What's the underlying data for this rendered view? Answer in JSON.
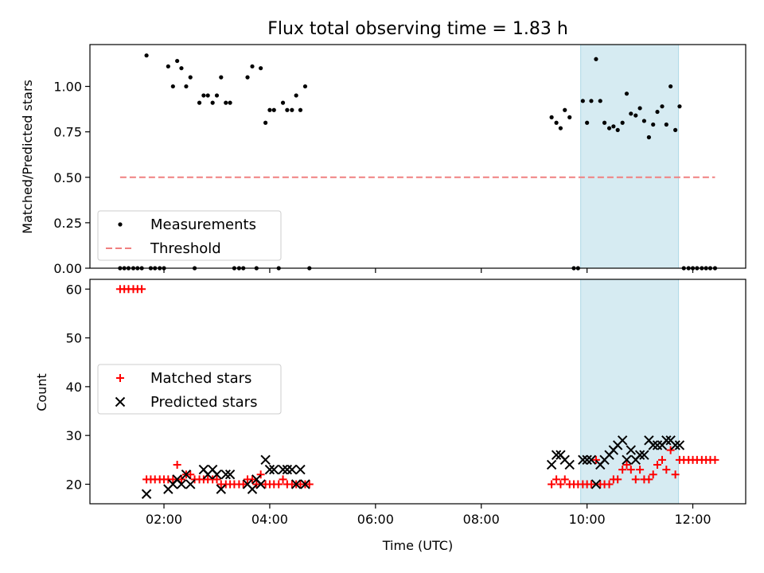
{
  "chart_data": [
    {
      "type": "scatter",
      "title": "Flux total observing time = 1.83 h",
      "xlabel": "",
      "ylabel": "Matched/Predicted stars",
      "xlim": [
        0.6,
        13.0
      ],
      "ylim": [
        0,
        1.23
      ],
      "yticks": [
        0,
        0.25,
        0.5,
        0.75,
        1.0
      ],
      "ytick_labels": [
        "0.00",
        "0.25",
        "0.50",
        "0.75",
        "1.00"
      ],
      "xticks": [
        2,
        4,
        6,
        8,
        10,
        12
      ],
      "xtick_labels": [
        "",
        "",
        "",
        "",
        "",
        ""
      ],
      "shaded_region": {
        "x0": 9.88,
        "x1": 11.73,
        "color": "#add8e6"
      },
      "legend": {
        "placement": "lower-left",
        "entries": [
          "Measurements",
          "Threshold"
        ]
      },
      "series": [
        {
          "name": "Measurements",
          "marker": "dot",
          "color": "#000000",
          "points": [
            [
              1.17,
              0
            ],
            [
              1.25,
              0
            ],
            [
              1.33,
              0
            ],
            [
              1.42,
              0
            ],
            [
              1.5,
              0
            ],
            [
              1.58,
              0
            ],
            [
              1.67,
              1.17
            ],
            [
              1.75,
              0
            ],
            [
              1.83,
              0
            ],
            [
              1.92,
              0
            ],
            [
              2.0,
              0
            ],
            [
              2.08,
              1.11
            ],
            [
              2.17,
              1.0
            ],
            [
              2.25,
              1.14
            ],
            [
              2.33,
              1.1
            ],
            [
              2.42,
              1.0
            ],
            [
              2.5,
              1.05
            ],
            [
              2.58,
              0
            ],
            [
              2.67,
              0.91
            ],
            [
              2.75,
              0.95
            ],
            [
              2.83,
              0.95
            ],
            [
              2.92,
              0.91
            ],
            [
              3.0,
              0.95
            ],
            [
              3.08,
              1.05
            ],
            [
              3.17,
              0.91
            ],
            [
              3.25,
              0.91
            ],
            [
              3.33,
              0
            ],
            [
              3.42,
              0
            ],
            [
              3.5,
              0
            ],
            [
              3.58,
              1.05
            ],
            [
              3.67,
              1.11
            ],
            [
              3.75,
              0
            ],
            [
              3.83,
              1.1
            ],
            [
              3.92,
              0.8
            ],
            [
              4.0,
              0.87
            ],
            [
              4.08,
              0.87
            ],
            [
              4.17,
              0
            ],
            [
              4.25,
              0.91
            ],
            [
              4.33,
              0.87
            ],
            [
              4.42,
              0.87
            ],
            [
              4.5,
              0.95
            ],
            [
              4.58,
              0.87
            ],
            [
              4.67,
              1.0
            ],
            [
              4.75,
              0
            ],
            [
              9.33,
              0.83
            ],
            [
              9.42,
              0.8
            ],
            [
              9.5,
              0.77
            ],
            [
              9.58,
              0.87
            ],
            [
              9.67,
              0.83
            ],
            [
              9.75,
              0
            ],
            [
              9.83,
              0
            ],
            [
              9.92,
              0.92
            ],
            [
              10.0,
              0.8
            ],
            [
              10.08,
              0.92
            ],
            [
              10.17,
              1.15
            ],
            [
              10.25,
              0.92
            ],
            [
              10.33,
              0.8
            ],
            [
              10.42,
              0.77
            ],
            [
              10.5,
              0.78
            ],
            [
              10.58,
              0.76
            ],
            [
              10.67,
              0.8
            ],
            [
              10.75,
              0.96
            ],
            [
              10.83,
              0.85
            ],
            [
              10.92,
              0.84
            ],
            [
              11.0,
              0.88
            ],
            [
              11.08,
              0.81
            ],
            [
              11.17,
              0.72
            ],
            [
              11.25,
              0.79
            ],
            [
              11.33,
              0.86
            ],
            [
              11.42,
              0.89
            ],
            [
              11.5,
              0.79
            ],
            [
              11.58,
              1.0
            ],
            [
              11.67,
              0.76
            ],
            [
              11.75,
              0.89
            ],
            [
              11.83,
              0
            ],
            [
              11.92,
              0
            ],
            [
              12.0,
              0
            ],
            [
              12.08,
              0
            ],
            [
              12.17,
              0
            ],
            [
              12.25,
              0
            ],
            [
              12.33,
              0
            ],
            [
              12.42,
              0
            ]
          ]
        },
        {
          "name": "Threshold",
          "line": "dashed",
          "color": "#f08080",
          "points": [
            [
              1.17,
              0.5
            ],
            [
              12.42,
              0.5
            ]
          ]
        }
      ]
    },
    {
      "type": "scatter",
      "title": "",
      "xlabel": "Time (UTC)",
      "ylabel": "Count",
      "xlim": [
        0.6,
        13.0
      ],
      "ylim": [
        16,
        62
      ],
      "yticks": [
        20,
        30,
        40,
        50,
        60
      ],
      "ytick_labels": [
        "20",
        "30",
        "40",
        "50",
        "60"
      ],
      "xticks": [
        2,
        4,
        6,
        8,
        10,
        12
      ],
      "xtick_labels": [
        "02:00",
        "04:00",
        "06:00",
        "08:00",
        "10:00",
        "12:00"
      ],
      "shaded_region": {
        "x0": 9.88,
        "x1": 11.73,
        "color": "#add8e6"
      },
      "legend": {
        "placement": "center-left",
        "entries": [
          "Matched stars",
          "Predicted stars"
        ]
      },
      "series": [
        {
          "name": "Matched stars",
          "marker": "plus",
          "color": "#ff0000",
          "points": [
            [
              1.17,
              60
            ],
            [
              1.25,
              60
            ],
            [
              1.33,
              60
            ],
            [
              1.42,
              60
            ],
            [
              1.5,
              60
            ],
            [
              1.58,
              60
            ],
            [
              1.67,
              21
            ],
            [
              1.75,
              21
            ],
            [
              1.83,
              21
            ],
            [
              1.92,
              21
            ],
            [
              2.0,
              21
            ],
            [
              2.08,
              21
            ],
            [
              2.17,
              21
            ],
            [
              2.25,
              24
            ],
            [
              2.33,
              21
            ],
            [
              2.42,
              22
            ],
            [
              2.5,
              22
            ],
            [
              2.58,
              21
            ],
            [
              2.67,
              21
            ],
            [
              2.75,
              21
            ],
            [
              2.83,
              21
            ],
            [
              2.92,
              21
            ],
            [
              3.0,
              21
            ],
            [
              3.08,
              20
            ],
            [
              3.17,
              20
            ],
            [
              3.25,
              20
            ],
            [
              3.33,
              20
            ],
            [
              3.42,
              20
            ],
            [
              3.5,
              20
            ],
            [
              3.58,
              21
            ],
            [
              3.67,
              21
            ],
            [
              3.75,
              20
            ],
            [
              3.83,
              22
            ],
            [
              3.92,
              20
            ],
            [
              4.0,
              20
            ],
            [
              4.08,
              20
            ],
            [
              4.17,
              20
            ],
            [
              4.25,
              21
            ],
            [
              4.33,
              20
            ],
            [
              4.42,
              20
            ],
            [
              4.5,
              20
            ],
            [
              4.58,
              20
            ],
            [
              4.67,
              20
            ],
            [
              4.75,
              20
            ],
            [
              9.33,
              20
            ],
            [
              9.42,
              21
            ],
            [
              9.5,
              20
            ],
            [
              9.58,
              21
            ],
            [
              9.67,
              20
            ],
            [
              9.75,
              20
            ],
            [
              9.83,
              20
            ],
            [
              9.92,
              20
            ],
            [
              10.0,
              20
            ],
            [
              10.08,
              20
            ],
            [
              10.17,
              25
            ],
            [
              10.25,
              20
            ],
            [
              10.33,
              20
            ],
            [
              10.42,
              20
            ],
            [
              10.5,
              21
            ],
            [
              10.58,
              21
            ],
            [
              10.67,
              23
            ],
            [
              10.75,
              24
            ],
            [
              10.83,
              23
            ],
            [
              10.92,
              21
            ],
            [
              11.0,
              23
            ],
            [
              11.08,
              21
            ],
            [
              11.17,
              21
            ],
            [
              11.25,
              22
            ],
            [
              11.33,
              24
            ],
            [
              11.42,
              25
            ],
            [
              11.5,
              23
            ],
            [
              11.58,
              27
            ],
            [
              11.67,
              22
            ],
            [
              11.75,
              25
            ],
            [
              11.83,
              25
            ],
            [
              11.92,
              25
            ],
            [
              12.0,
              25
            ],
            [
              12.08,
              25
            ],
            [
              12.17,
              25
            ],
            [
              12.25,
              25
            ],
            [
              12.33,
              25
            ],
            [
              12.42,
              25
            ]
          ]
        },
        {
          "name": "Predicted stars",
          "marker": "x",
          "color": "#000000",
          "points": [
            [
              1.67,
              18
            ],
            [
              2.08,
              19
            ],
            [
              2.17,
              20
            ],
            [
              2.25,
              21
            ],
            [
              2.33,
              20
            ],
            [
              2.42,
              22
            ],
            [
              2.5,
              20
            ],
            [
              2.75,
              23
            ],
            [
              2.83,
              22
            ],
            [
              2.92,
              23
            ],
            [
              3.0,
              22
            ],
            [
              3.08,
              19
            ],
            [
              3.17,
              22
            ],
            [
              3.25,
              22
            ],
            [
              3.58,
              20
            ],
            [
              3.67,
              19
            ],
            [
              3.75,
              21
            ],
            [
              3.83,
              20
            ],
            [
              3.92,
              25
            ],
            [
              4.0,
              23
            ],
            [
              4.08,
              23
            ],
            [
              4.25,
              23
            ],
            [
              4.33,
              23
            ],
            [
              4.42,
              23
            ],
            [
              4.5,
              20
            ],
            [
              4.58,
              23
            ],
            [
              4.67,
              20
            ],
            [
              9.33,
              24
            ],
            [
              9.42,
              26
            ],
            [
              9.5,
              26
            ],
            [
              9.58,
              25
            ],
            [
              9.67,
              24
            ],
            [
              9.92,
              25
            ],
            [
              10.0,
              25
            ],
            [
              10.08,
              25
            ],
            [
              10.17,
              20
            ],
            [
              10.25,
              24
            ],
            [
              10.33,
              25
            ],
            [
              10.42,
              26
            ],
            [
              10.5,
              27
            ],
            [
              10.58,
              28
            ],
            [
              10.67,
              29
            ],
            [
              10.75,
              25
            ],
            [
              10.83,
              27
            ],
            [
              10.92,
              25
            ],
            [
              11.0,
              26
            ],
            [
              11.08,
              26
            ],
            [
              11.17,
              29
            ],
            [
              11.25,
              28
            ],
            [
              11.33,
              28
            ],
            [
              11.42,
              28
            ],
            [
              11.5,
              29
            ],
            [
              11.58,
              29
            ],
            [
              11.67,
              28
            ],
            [
              11.75,
              28
            ]
          ]
        }
      ]
    }
  ]
}
